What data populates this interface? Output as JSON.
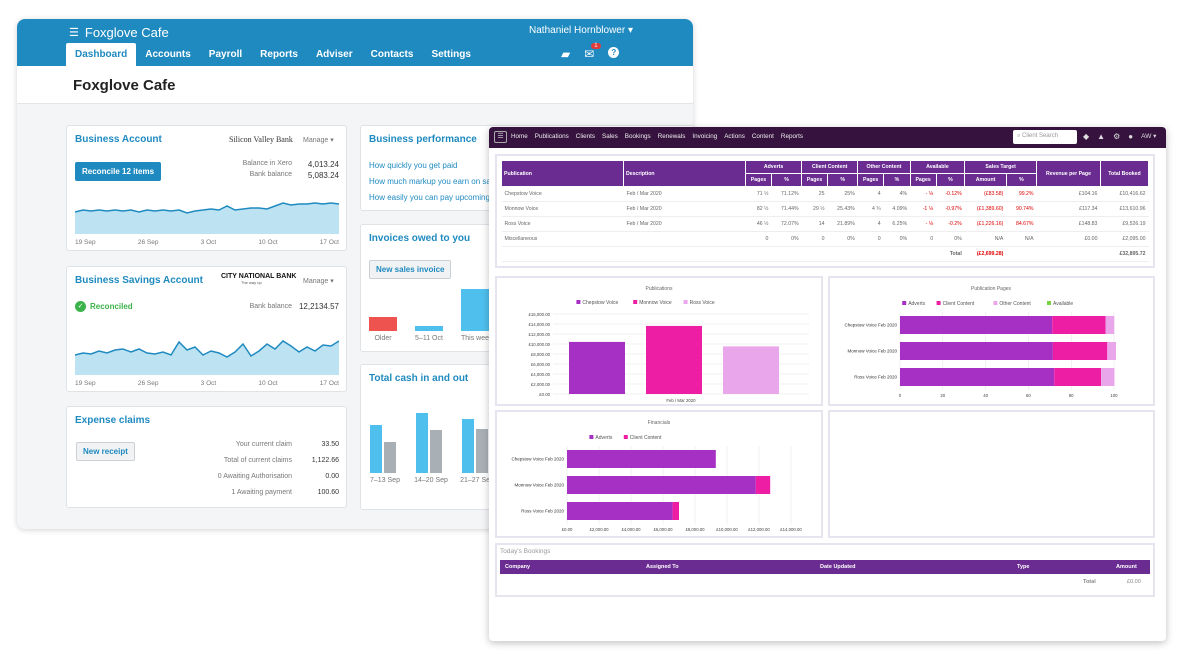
{
  "xero": {
    "brand": "Foxglove Cafe",
    "user": "Nathaniel Hornblower",
    "nav": [
      "Dashboard",
      "Accounts",
      "Payroll",
      "Reports",
      "Adviser",
      "Contacts",
      "Settings"
    ],
    "mail_badge": "1",
    "page_title": "Foxglove Cafe",
    "business_account": {
      "title": "Business Account",
      "bank": "Silicon Valley Bank",
      "manage": "Manage",
      "reconcile_button": "Reconcile 12 items",
      "balance_xero_label": "Balance in Xero",
      "balance_xero": "4,013.24",
      "bank_balance_label": "Bank balance",
      "bank_balance": "5,083.24",
      "dates": [
        "19 Sep",
        "26 Sep",
        "3 Oct",
        "10 Oct",
        "17 Oct"
      ]
    },
    "savings_account": {
      "title": "Business Savings Account",
      "bank": "CITY NATIONAL BANK",
      "bank_tagline": "The way up",
      "manage": "Manage",
      "status": "Reconciled",
      "bank_balance_label": "Bank balance",
      "bank_balance": "12,2134.57",
      "dates": [
        "19 Sep",
        "26 Sep",
        "3 Oct",
        "10 Oct",
        "17 Oct"
      ]
    },
    "expense_claims": {
      "title": "Expense claims",
      "button": "New receipt",
      "rows": [
        {
          "label": "Your current claim",
          "value": "33.50"
        },
        {
          "label": "Total of current claims",
          "value": "1,122.66"
        },
        {
          "label": "0 Awaiting Authorisation",
          "value": "0.00"
        },
        {
          "label": "1 Awaiting payment",
          "value": "100.60"
        }
      ]
    },
    "business_performance": {
      "title": "Business performance",
      "links": [
        "How quickly you get paid",
        "How much markup you earn on sales",
        "How easily you can pay upcoming bills"
      ]
    },
    "invoices_owed": {
      "title": "Invoices owed to you",
      "button": "New sales invoice",
      "labels": [
        "Older",
        "5–11 Oct",
        "This week"
      ]
    },
    "cash_in_out": {
      "title": "Total cash in and out",
      "labels": [
        "7–13 Sep",
        "14–20 Sep",
        "21–27 Sep"
      ]
    }
  },
  "app": {
    "nav": [
      "Home",
      "Publications",
      "Clients",
      "Sales",
      "Bookings",
      "Renewals",
      "Invoicing",
      "Actions",
      "Content",
      "Reports"
    ],
    "search_placeholder": "Client Search",
    "user_initials": "AW",
    "table": {
      "headers_top": [
        "Publication",
        "Description",
        "Adverts",
        "Client Content",
        "Other Content",
        "Available",
        "Sales Target",
        "Revenue per Page",
        "Total Booked"
      ],
      "headers_sub": [
        "Pages",
        "%",
        "Pages",
        "%",
        "Pages",
        "%",
        "Pages",
        "%",
        "Amount",
        "%"
      ],
      "rows": [
        {
          "pub": "Chepstow Voice",
          "desc": "Feb / Mar 2020",
          "ap": "71 ½",
          "apc": "71.12%",
          "cp": "25",
          "cpc": "25%",
          "op": "4",
          "opc": "4%",
          "vp": "- ⅛",
          "vpc": "-0.12%",
          "amt": "(£83.58)",
          "amc": "99.2%",
          "rev": "£104.16",
          "tot": "£10,416.62"
        },
        {
          "pub": "Monnow Voice",
          "desc": "Feb / Mar 2020",
          "ap": "82 ½",
          "apc": "71.44%",
          "cp": "29 ½",
          "cpc": "25.43%",
          "op": "4 ¾",
          "opc": "4.09%",
          "vp": "-1 ⅛",
          "vpc": "-0.97%",
          "amt": "(£1,389.60)",
          "amc": "90.74%",
          "rev": "£117.34",
          "tot": "£13,610.96"
        },
        {
          "pub": "Ross Voice",
          "desc": "Feb / Mar 2020",
          "ap": "46 ½",
          "apc": "72.07%",
          "cp": "14",
          "cpc": "21.89%",
          "op": "4",
          "opc": "6.25%",
          "vp": "- ⅛",
          "vpc": "-0.2%",
          "amt": "(£1,226.16)",
          "amc": "84.67%",
          "rev": "£148.83",
          "tot": "£9,526.19"
        },
        {
          "pub": "Miscellaneous",
          "desc": "",
          "ap": "0",
          "apc": "0%",
          "cp": "0",
          "cpc": "0%",
          "op": "0",
          "opc": "0%",
          "vp": "0",
          "vpc": "0%",
          "amt": "N/A",
          "amc": "N/A",
          "rev": "£0.00",
          "tot": "£2,095.00"
        }
      ],
      "total_label": "Total",
      "total_amount": "(£2,699.28)",
      "total_booked": "£32,895.72"
    },
    "todays_bookings": {
      "title": "Today's Bookings",
      "headers": [
        "Company",
        "Assigned To",
        "Date Updated",
        "Type",
        "Amount"
      ],
      "total_label": "Total",
      "total_value": "£0.00"
    }
  },
  "colors": {
    "xero_blue": "#1f8ac0",
    "purple_dark": "#36123e",
    "purple": "#6a2c91",
    "series": [
      "#a62fc4",
      "#ee1ea4",
      "#eaa6ea",
      "#7ad140"
    ]
  },
  "chart_data": [
    {
      "type": "bar",
      "title": "Publications",
      "categories": [
        "Feb / Mar 2020"
      ],
      "series": [
        {
          "name": "Chepstow Voice",
          "values": [
            10416.62
          ]
        },
        {
          "name": "Monnow Voice",
          "values": [
            13610.96
          ]
        },
        {
          "name": "Ross Voice",
          "values": [
            9526.19
          ]
        }
      ],
      "ylim": [
        0,
        16000
      ],
      "yticks": [
        "£0.00",
        "£2,000.00",
        "£4,000.00",
        "£6,000.00",
        "£8,000.00",
        "£10,000.00",
        "£12,000.00",
        "£14,000.00",
        "£16,000.00"
      ]
    },
    {
      "type": "bar",
      "orientation": "horizontal-stacked",
      "title": "Publication Pages",
      "categories": [
        "Chepstow Voice Feb 2020",
        "Monnow Voice Feb 2020",
        "Ross Voice Feb 2020"
      ],
      "series": [
        {
          "name": "Adverts",
          "values": [
            71.12,
            71.44,
            72.07
          ]
        },
        {
          "name": "Client Content",
          "values": [
            25,
            25.43,
            21.89
          ]
        },
        {
          "name": "Other Content",
          "values": [
            4,
            4.09,
            6.25
          ]
        },
        {
          "name": "Available",
          "values": [
            0,
            0,
            0
          ]
        }
      ],
      "xlim": [
        0,
        100
      ],
      "xticks": [
        "0",
        "20",
        "40",
        "60",
        "80",
        "100"
      ]
    },
    {
      "type": "bar",
      "orientation": "horizontal-stacked",
      "title": "Financials",
      "categories": [
        "Chepstow Voice Feb 2020",
        "Monnow Voice Feb 2020",
        "Ross Voice Feb 2020"
      ],
      "series": [
        {
          "name": "Adverts",
          "values": [
            9300,
            11800,
            6600
          ]
        },
        {
          "name": "Client Content",
          "values": [
            0,
            900,
            400
          ]
        }
      ],
      "xlim": [
        0,
        14000
      ],
      "xticks": [
        "£0.00",
        "£2,000.00",
        "£4,000.00",
        "£6,000.00",
        "£8,000.00",
        "£10,000.00",
        "£12,000.00",
        "£14,000.00"
      ]
    }
  ]
}
